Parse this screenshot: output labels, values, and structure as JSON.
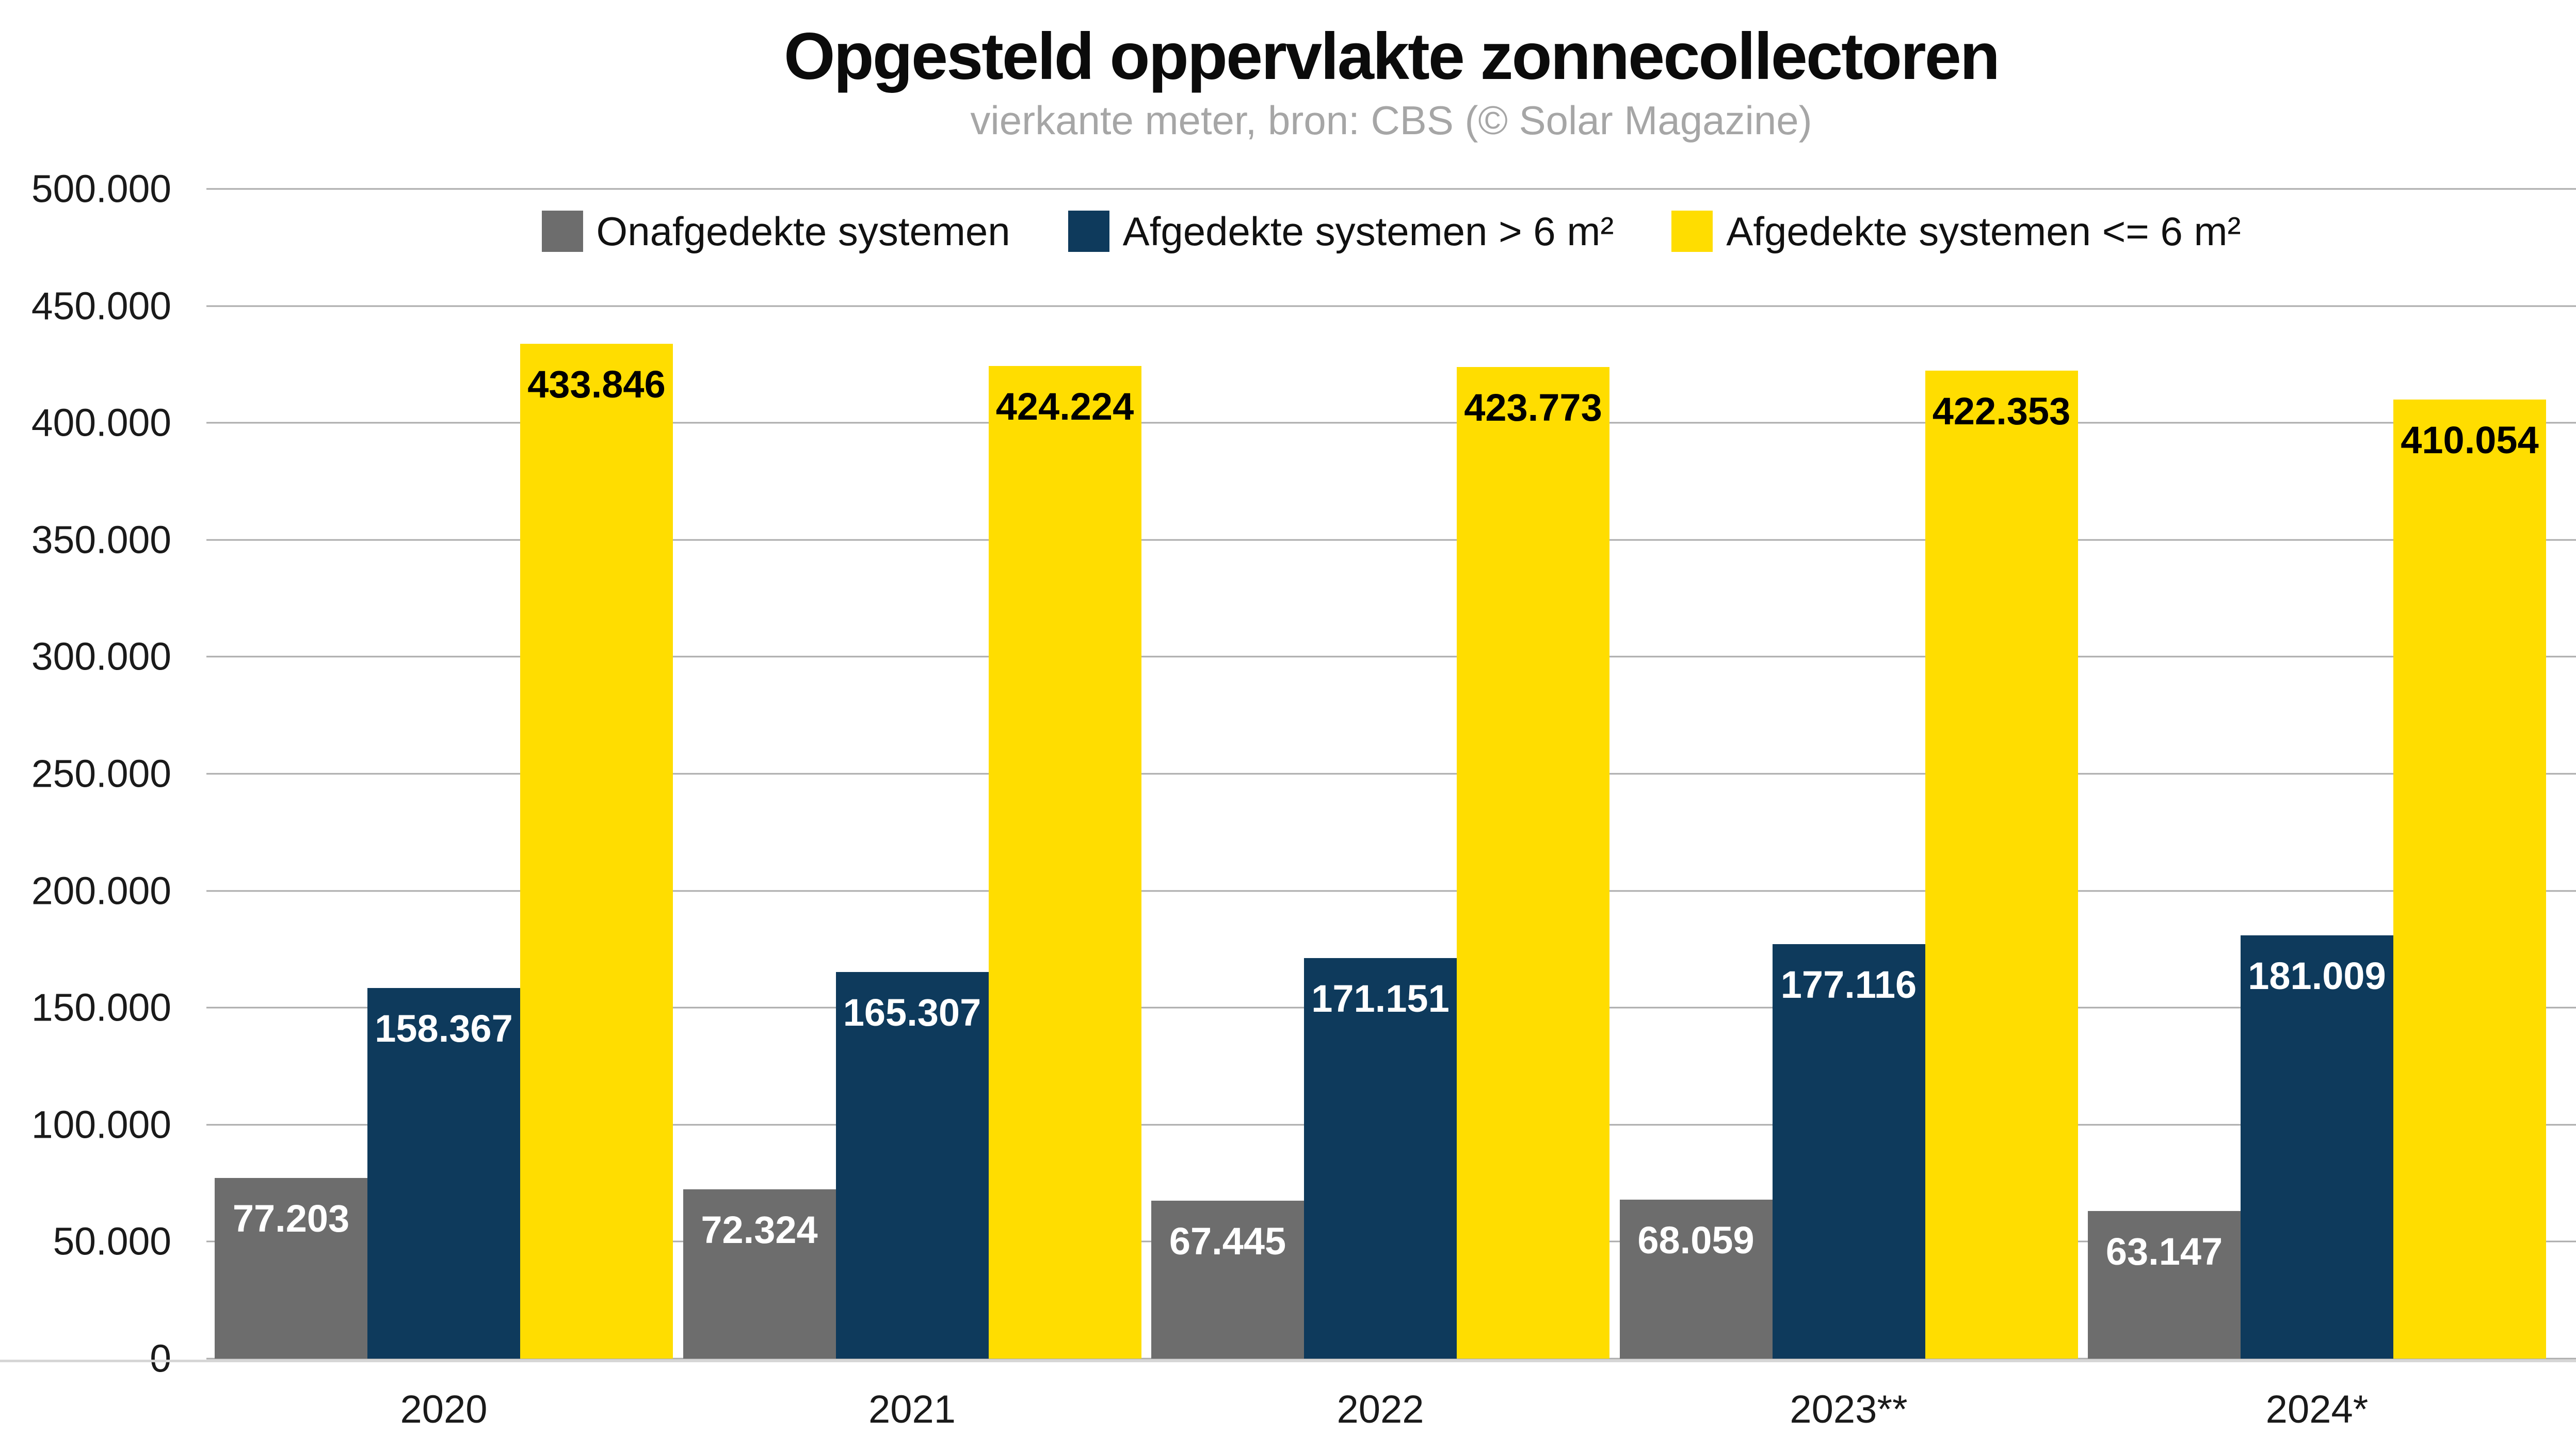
{
  "title": "Opgesteld oppervlakte zonnecollectoren",
  "subtitle": "vierkante meter, bron: CBS (© Solar Magazine)",
  "colors": {
    "background": "#ffffff",
    "title_text": "#0b0b0b",
    "subtitle_text": "#a6a6a6",
    "tick_text": "#1a1a1a",
    "gridline": "#ababab",
    "axis_line": "#d6d6d6",
    "series_gray": "#6d6d6d",
    "series_navy": "#0e3a5c",
    "series_yellow": "#ffdd00"
  },
  "chart_data": {
    "type": "bar",
    "title": "Opgesteld oppervlakte zonnecollectoren",
    "subtitle": "vierkante meter, bron: CBS (© Solar Magazine)",
    "categories": [
      "2020",
      "2021",
      "2022",
      "2023**",
      "2024*"
    ],
    "series": [
      {
        "name": "Onafgedekte systemen",
        "color": "#6d6d6d",
        "label_color": "#ffffff",
        "values": [
          77203,
          72324,
          67445,
          68059,
          63147
        ]
      },
      {
        "name": "Afgedekte systemen > 6 m²",
        "color": "#0e3a5c",
        "label_color": "#ffffff",
        "values": [
          158367,
          165307,
          171151,
          177116,
          181009
        ]
      },
      {
        "name": "Afgedekte systemen <= 6 m²",
        "color": "#ffdd00",
        "label_color": "#000000",
        "values": [
          433846,
          424224,
          423773,
          422353,
          410054
        ]
      }
    ],
    "data_labels": [
      [
        "77.203",
        "72.324",
        "67.445",
        "68.059",
        "63.147"
      ],
      [
        "158.367",
        "165.307",
        "171.151",
        "177.116",
        "181.009"
      ],
      [
        "433.846",
        "424.224",
        "423.773",
        "422.353",
        "410.054"
      ]
    ],
    "xlabel": "",
    "ylabel": "",
    "ylim": [
      0,
      500000
    ],
    "ytick_step": 50000,
    "ytick_labels": [
      "0",
      "50.000",
      "100.000",
      "150.000",
      "200.000",
      "250.000",
      "300.000",
      "350.000",
      "400.000",
      "450.000",
      "500.000"
    ],
    "grid": true,
    "legend_position": "top-center",
    "number_format": "thousands-dot"
  }
}
